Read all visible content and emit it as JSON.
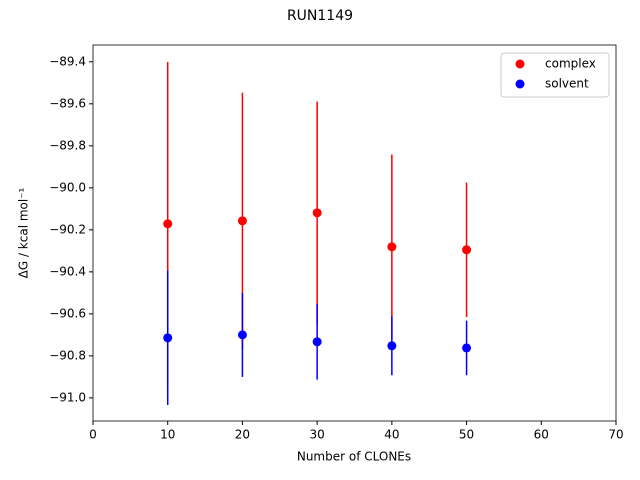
{
  "chart_data": {
    "type": "errorbar",
    "title": "RUN1149",
    "xlabel": "Number of CLONEs",
    "ylabel": "ΔG / kcal mol⁻¹",
    "x": [
      10,
      20,
      30,
      40,
      50
    ],
    "series": [
      {
        "name": "complex",
        "color": "#ff0000",
        "values": [
          -90.171,
          -90.157,
          -90.119,
          -90.281,
          -90.295
        ],
        "errors": [
          0.77,
          0.61,
          0.53,
          0.44,
          0.32
        ]
      },
      {
        "name": "solvent",
        "color": "#0000ff",
        "values": [
          -90.714,
          -90.7,
          -90.733,
          -90.752,
          -90.762
        ],
        "errors": [
          0.32,
          0.2,
          0.18,
          0.14,
          0.13
        ]
      }
    ],
    "xlim": [
      0,
      70
    ],
    "xticks": [
      0,
      10,
      20,
      30,
      40,
      50,
      60,
      70
    ],
    "ylim": [
      -91.11,
      -89.32
    ],
    "yticks": [
      {
        "value": -91.0,
        "label": "−91.0"
      },
      {
        "value": -90.8,
        "label": "−90.8"
      },
      {
        "value": -90.6,
        "label": "−90.6"
      },
      {
        "value": -90.4,
        "label": "−90.4"
      },
      {
        "value": -90.2,
        "label": "−90.2"
      },
      {
        "value": -90.0,
        "label": "−90.0"
      },
      {
        "value": -89.8,
        "label": "−89.8"
      },
      {
        "value": -89.6,
        "label": "−89.6"
      },
      {
        "value": -89.4,
        "label": "−89.4"
      }
    ],
    "legend": "upper right",
    "grid": false
  }
}
